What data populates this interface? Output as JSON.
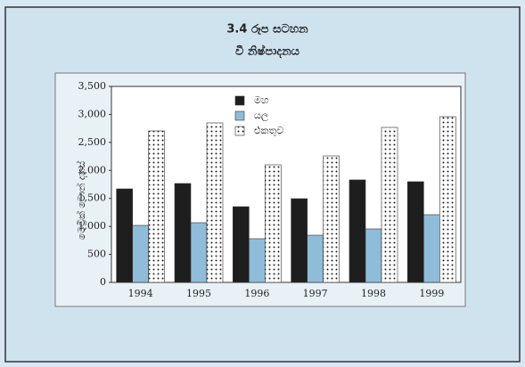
{
  "chart_data": {
    "type": "bar",
    "title": "3.4 රූප සටහන",
    "subtitle": "වී නිෂ්පාදනය",
    "y_label": "මෙට්‍රික් ටොන් දහස්",
    "categories": [
      "1994",
      "1995",
      "1996",
      "1997",
      "1998",
      "1999"
    ],
    "series": [
      {
        "name": "මහ",
        "color": "#1e1e1e",
        "values": [
          1670,
          1766,
          1352,
          1495,
          1830,
          1798
        ]
      },
      {
        "name": "යල",
        "color": "#8fbcd9",
        "values": [
          1018,
          1066,
          780,
          843,
          955,
          1209
        ]
      },
      {
        "name": "එකතුව",
        "color": "#ffffff",
        "pattern": "dots",
        "values": [
          2705,
          2848,
          2100,
          2259,
          2768,
          2959
        ]
      }
    ],
    "ylim": [
      0,
      3500
    ],
    "yticks": [
      0,
      500,
      {
        "value": 1000,
        "label": "1,000"
      },
      {
        "value": 1500,
        "label": "1,500"
      },
      {
        "value": 2000,
        "label": "2,000"
      },
      {
        "value": 2500,
        "label": "2,500"
      },
      {
        "value": 3000,
        "label": "3,000"
      },
      {
        "value": 3500,
        "label": "3,500"
      }
    ],
    "legend": "top"
  }
}
